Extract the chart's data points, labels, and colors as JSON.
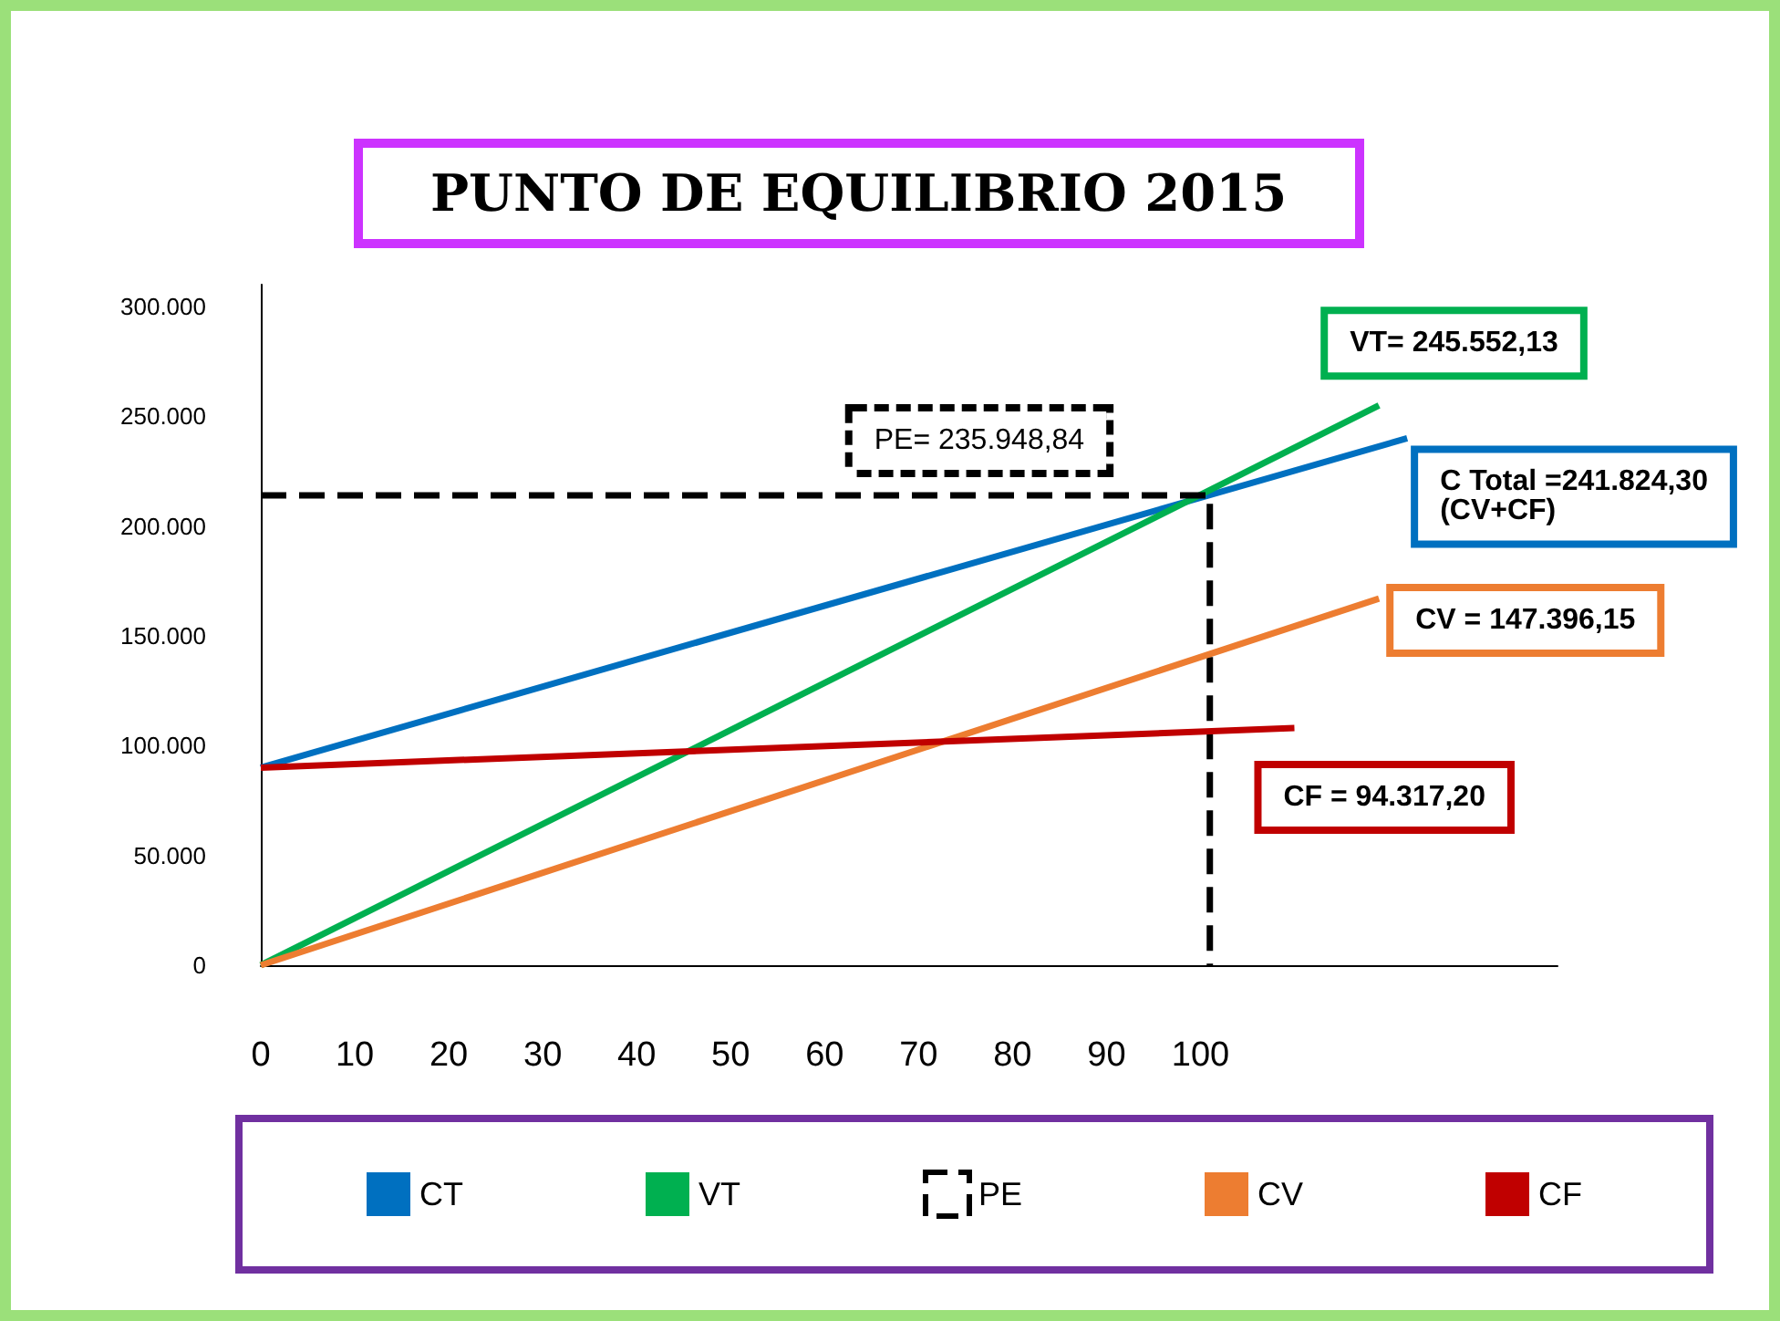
{
  "chart_data": {
    "type": "line",
    "title": "PUNTO DE EQUILIBRIO 2015",
    "xlim": [
      0,
      138
    ],
    "xticks": [
      0,
      10,
      20,
      30,
      40,
      50,
      60,
      70,
      80,
      90,
      100
    ],
    "ylim": [
      0,
      310000
    ],
    "yticks": [
      {
        "value": 0,
        "label": "0"
      },
      {
        "value": 50000,
        "label": "50.000"
      },
      {
        "value": 100000,
        "label": "100.000"
      },
      {
        "value": 150000,
        "label": "150.000"
      },
      {
        "value": 200000,
        "label": "200.000"
      },
      {
        "value": 250000,
        "label": "250.000"
      },
      {
        "value": 300000,
        "label": "300.000"
      }
    ],
    "series": [
      {
        "name": "CT",
        "color": "#0070c0",
        "x": [
          0,
          122
        ],
        "values": [
          90000,
          240000
        ]
      },
      {
        "name": "VT",
        "color": "#00b050",
        "x": [
          0,
          119
        ],
        "values": [
          0,
          255000
        ]
      },
      {
        "name": "PE",
        "color": "#000000",
        "line_style": "dashed",
        "x": [
          0,
          101,
          101
        ],
        "values": [
          214000,
          214000,
          0
        ]
      },
      {
        "name": "CV",
        "color": "#ed7d31",
        "x": [
          0,
          119
        ],
        "values": [
          0,
          167000
        ]
      },
      {
        "name": "CF",
        "color": "#c00000",
        "x": [
          0,
          110
        ],
        "values": [
          90000,
          108000
        ]
      }
    ],
    "annotations": [
      "C Total =241.824,30\n(CV+CF)",
      "VT= 245.552,13",
      "PE= 235.948,84",
      "CV = 147.396,15",
      "CF = 94.317,20"
    ],
    "grid": false,
    "marker": "none",
    "line_style": "solid",
    "legend": "bottom"
  }
}
